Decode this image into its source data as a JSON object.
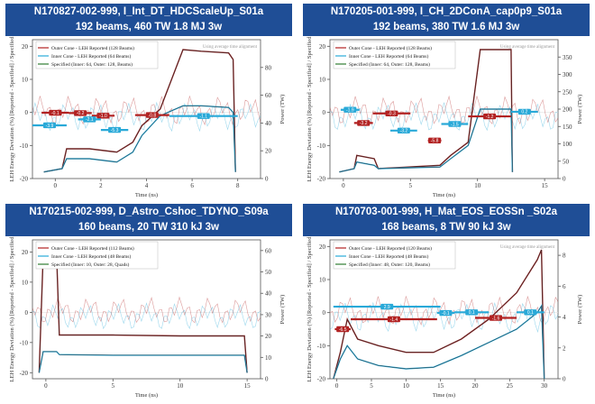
{
  "colors": {
    "title_bg": "#1f4e96",
    "outer": "#b22222",
    "inner": "#29a9d8",
    "specified": "#2e7d32",
    "power": "#8b1a1a"
  },
  "chart_data": [
    {
      "type": "line",
      "title": "N170827-002-999, I_Int_DT_HDCScaleUp_S01a",
      "subtitle": "192 beams, 460 TW  1.8 MJ 3w",
      "xlabel": "Time (ns)",
      "ylabel": "LEH Energy Deviation (%) [Reported - Specified] / Specified",
      "y2label": "Power (TW)",
      "xlim": [
        -1,
        9
      ],
      "ylim": [
        -20,
        22
      ],
      "y2lim": [
        0,
        100
      ],
      "xticks": [
        0,
        2,
        4,
        6,
        8
      ],
      "yticks": [
        -20,
        -10,
        0,
        10,
        20
      ],
      "y2ticks": [
        0,
        20,
        40,
        60,
        80
      ],
      "legend": [
        "Outer Cone - LEH Reported (128 Beams)",
        "Inner Cone - LEH Reported (64 Beams)",
        "Specified (Inner: 64, Outer: 128, Beams)"
      ],
      "note": "Using average time alignment",
      "power_outer": [
        [
          -0.5,
          -18
        ],
        [
          0.3,
          -17
        ],
        [
          0.5,
          -11
        ],
        [
          1.5,
          -11
        ],
        [
          2.7,
          -12
        ],
        [
          3.4,
          -9
        ],
        [
          3.8,
          -4
        ],
        [
          4.6,
          1
        ],
        [
          5.6,
          19
        ],
        [
          6.4,
          18.5
        ],
        [
          7.6,
          18
        ],
        [
          7.8,
          16
        ],
        [
          7.9,
          -18
        ]
      ],
      "power_inner": [
        [
          -0.5,
          -18
        ],
        [
          0.3,
          -17
        ],
        [
          0.5,
          -14
        ],
        [
          1.5,
          -14
        ],
        [
          2.7,
          -15
        ],
        [
          3.4,
          -12
        ],
        [
          3.8,
          -7
        ],
        [
          4.6,
          -1
        ],
        [
          5.6,
          2
        ],
        [
          6.4,
          2
        ],
        [
          7.6,
          1.5
        ],
        [
          7.8,
          0
        ],
        [
          7.9,
          -18
        ]
      ],
      "annotations": [
        {
          "label": "-0.1",
          "x0": -0.6,
          "x1": 0.6,
          "y": -0.1,
          "series": "outer"
        },
        {
          "label": "-0.2",
          "x0": 0.6,
          "x1": 1.6,
          "y": -0.2,
          "series": "outer"
        },
        {
          "label": "-1.0",
          "x0": 1.6,
          "x1": 2.6,
          "y": -1.0,
          "series": "outer"
        },
        {
          "label": "-0.8",
          "x0": 3.5,
          "x1": 5.0,
          "y": -0.8,
          "series": "outer"
        },
        {
          "label": "-3.9",
          "x0": -1.0,
          "x1": 0.5,
          "y": -3.9,
          "series": "inner"
        },
        {
          "label": "-2.1",
          "x0": 1.0,
          "x1": 2.0,
          "y": -2.1,
          "series": "inner"
        },
        {
          "label": "-5.3",
          "x0": 2.0,
          "x1": 3.2,
          "y": -5.3,
          "series": "inner"
        },
        {
          "label": "-1.1",
          "x0": 5.0,
          "x1": 8.0,
          "y": -1.1,
          "series": "inner"
        }
      ]
    },
    {
      "type": "line",
      "title": "N170205-001-999, I_CH_2DConA_cap0p9_S01a",
      "subtitle": "192 beams, 380 TW  1.6 MJ 3w",
      "xlabel": "Time (ns)",
      "ylabel": "LEH Energy Deviation (%) [Reported - Specified] / Specified",
      "y2label": "Power (TW)",
      "xlim": [
        -1,
        16
      ],
      "ylim": [
        -20,
        22
      ],
      "y2lim": [
        0,
        400
      ],
      "xticks": [
        0,
        5,
        10,
        15
      ],
      "yticks": [
        -20,
        -10,
        0,
        10,
        20
      ],
      "y2ticks": [
        0,
        50,
        100,
        150,
        200,
        250,
        300,
        350
      ],
      "legend": [
        "Outer Cone - LEH Reported (128 Beams)",
        "Inner Cone - LEH Reported (64 Beams)",
        "Specified (Inner: 64, Outer: 128, Beams)"
      ],
      "note": "Using average time alignment",
      "power_outer": [
        [
          -0.3,
          -18
        ],
        [
          0.8,
          -17
        ],
        [
          1.0,
          -13
        ],
        [
          2.3,
          -14
        ],
        [
          2.6,
          -17
        ],
        [
          7.2,
          -16
        ],
        [
          8.0,
          -13
        ],
        [
          9.3,
          -9
        ],
        [
          10.2,
          19
        ],
        [
          12.0,
          19
        ],
        [
          12.5,
          19
        ],
        [
          12.6,
          -18
        ]
      ],
      "power_inner": [
        [
          -0.3,
          -18
        ],
        [
          0.8,
          -17
        ],
        [
          1.0,
          -15
        ],
        [
          2.3,
          -16
        ],
        [
          2.6,
          -17
        ],
        [
          7.2,
          -16.5
        ],
        [
          8.0,
          -14
        ],
        [
          9.3,
          -10
        ],
        [
          10.2,
          1
        ],
        [
          12.0,
          1
        ],
        [
          12.5,
          1
        ],
        [
          12.6,
          -18
        ]
      ],
      "annotations": [
        {
          "label": "-1.9",
          "x0": -0.2,
          "x1": 1.2,
          "y": 0.8,
          "series": "inner"
        },
        {
          "label": "-3.2",
          "x0": 0.8,
          "x1": 2.2,
          "y": -3.2,
          "series": "outer"
        },
        {
          "label": "-0.3",
          "x0": 2.2,
          "x1": 5.0,
          "y": -0.3,
          "series": "outer"
        },
        {
          "label": "-3.2",
          "x0": 3.5,
          "x1": 5.5,
          "y": -5.5,
          "series": "inner"
        },
        {
          "label": "-5.8",
          "x0": 6.3,
          "x1": 7.3,
          "y": -8.5,
          "series": "outer"
        },
        {
          "label": "-1.5",
          "x0": 7.3,
          "x1": 9.3,
          "y": -3.5,
          "series": "inner"
        },
        {
          "label": "-1.2",
          "x0": 9.3,
          "x1": 12.5,
          "y": -1.2,
          "series": "outer"
        },
        {
          "label": "0.2",
          "x0": 12.5,
          "x1": 14.5,
          "y": 0.2,
          "series": "inner"
        }
      ]
    },
    {
      "type": "line",
      "title": "N170215-002-999, D_Astro_Cshoc_TDYNO_S09a",
      "subtitle": "160 beams, 20 TW  310 kJ 3w",
      "xlabel": "Time (ns)",
      "ylabel": "LEH Energy Deviation (%) [Reported - Specified] / Specified",
      "y2label": "Power (TW)",
      "xlim": [
        -1,
        16
      ],
      "ylim": [
        -22,
        24
      ],
      "y2lim": [
        0,
        65
      ],
      "xticks": [
        0,
        5,
        10,
        15
      ],
      "yticks": [
        -20,
        -10,
        0,
        10,
        20
      ],
      "y2ticks": [
        0,
        10,
        20,
        30,
        40,
        50,
        60
      ],
      "legend": [
        "Outer Cone - LEH Reported (112 Beams)",
        "Inner Cone - LEH Reported (48 Beams)",
        "Specified (Inner: 10, Outer: 28, Quads)"
      ],
      "note": "",
      "power_outer": [
        [
          -0.5,
          -20
        ],
        [
          -0.2,
          19
        ],
        [
          0.8,
          19
        ],
        [
          1.0,
          -7.5
        ],
        [
          5.0,
          -7.5
        ],
        [
          10.0,
          -7.8
        ],
        [
          14.8,
          -7.8
        ],
        [
          15.0,
          -20
        ]
      ],
      "power_inner": [
        [
          -0.5,
          -20
        ],
        [
          -0.2,
          -13
        ],
        [
          0.8,
          -13
        ],
        [
          1.0,
          -14
        ],
        [
          5.0,
          -14.2
        ],
        [
          10.0,
          -14.2
        ],
        [
          14.8,
          -14.2
        ],
        [
          15.0,
          -20
        ]
      ],
      "annotations": []
    },
    {
      "type": "line",
      "title": "N170703-001-999, H_Mat_EOS_EOSSn _S02a",
      "subtitle": "168 beams, 8 TW 90 kJ 3w",
      "xlabel": "Time (ns)",
      "ylabel": "LEH Energy Deviation (%) [Reported - Specified] / Specified",
      "y2label": "Power (TW)",
      "xlim": [
        -1,
        32
      ],
      "ylim": [
        -20,
        22
      ],
      "y2lim": [
        0,
        9
      ],
      "xticks": [
        0,
        5,
        10,
        15,
        20,
        25,
        30
      ],
      "yticks": [
        -20,
        -10,
        0,
        10,
        20
      ],
      "y2ticks": [
        0,
        2,
        4,
        6,
        8
      ],
      "legend": [
        "Outer Cone - LEH Reported (120 Beams)",
        "Inner Cone - LEH Reported (48 Beams)",
        "Specified (Inner: 48, Outer: 120, Beams)"
      ],
      "note": "Using average time alignment",
      "power_outer": [
        [
          -0.5,
          -20
        ],
        [
          0.5,
          -12
        ],
        [
          1.5,
          -2
        ],
        [
          3,
          -8
        ],
        [
          6,
          -10
        ],
        [
          10,
          -12
        ],
        [
          14,
          -12
        ],
        [
          18,
          -8
        ],
        [
          22,
          -2
        ],
        [
          26,
          6
        ],
        [
          29,
          16
        ],
        [
          29.6,
          19
        ],
        [
          30,
          -20
        ]
      ],
      "power_inner": [
        [
          -0.5,
          -20
        ],
        [
          0.5,
          -14
        ],
        [
          1.5,
          -10
        ],
        [
          3,
          -14
        ],
        [
          6,
          -16
        ],
        [
          10,
          -17
        ],
        [
          14,
          -16.5
        ],
        [
          18,
          -13
        ],
        [
          22,
          -9
        ],
        [
          26,
          -5
        ],
        [
          29,
          0
        ],
        [
          29.6,
          2
        ],
        [
          30,
          -20
        ]
      ],
      "annotations": [
        {
          "label": "2.9",
          "x0": -0.5,
          "x1": 15,
          "y": 1.8,
          "series": "inner"
        },
        {
          "label": "-6.5",
          "x0": -0.3,
          "x1": 2.0,
          "y": -5.0,
          "series": "outer"
        },
        {
          "label": "-1.4",
          "x0": 2.0,
          "x1": 14.5,
          "y": -2.0,
          "series": "outer"
        },
        {
          "label": "-0.1",
          "x0": 14.5,
          "x1": 17,
          "y": -0.1,
          "series": "inner"
        },
        {
          "label": "0.1",
          "x0": 17,
          "x1": 22,
          "y": 0.1,
          "series": "inner"
        },
        {
          "label": "-1.6",
          "x0": 20,
          "x1": 26,
          "y": -1.6,
          "series": "outer"
        },
        {
          "label": "0.1",
          "x0": 26,
          "x1": 30,
          "y": 0.1,
          "series": "inner"
        }
      ]
    }
  ]
}
